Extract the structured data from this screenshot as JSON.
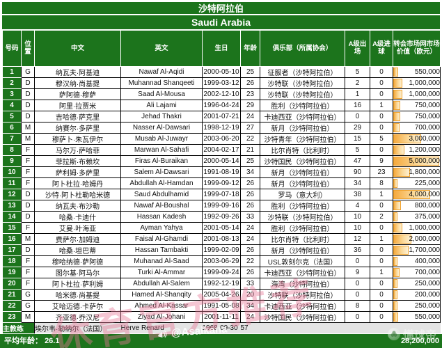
{
  "title_cn": "沙特阿拉伯",
  "title_en": "Saudi Arabia",
  "columns": [
    "号码",
    "位置",
    "中文",
    "英文",
    "生日",
    "年龄",
    "俱乐部（所属协会）",
    "A级出场",
    "A级进球",
    "转会市场网市场价值（欧元）"
  ],
  "value_axis_max": 5000000,
  "colors": {
    "green": "#1c741c",
    "bar_orange": "#f5a93d",
    "watermark_pink": "rgba(232,118,150,0.42)"
  },
  "players": [
    {
      "no": "1",
      "pos": "G",
      "cn": "纳瓦夫·阿基迪",
      "en": "Nawaf Al-Aqidi",
      "dob": "2000-05-10",
      "age": "25",
      "club": "征服者（沙特阿拉伯）",
      "caps": "5",
      "goals": "0",
      "value": "550,000",
      "value_num": 550000
    },
    {
      "no": "2",
      "pos": "D",
      "cn": "穆汉纳·尚基提",
      "en": "Muhannad Shanqeeti",
      "dob": "1999-03-12",
      "age": "26",
      "club": "沙特联（沙特阿拉伯）",
      "caps": "2",
      "goals": "0",
      "value": "1,000,000",
      "value_num": 1000000
    },
    {
      "no": "3",
      "pos": "D",
      "cn": "萨阿德·穆萨",
      "en": "Saad Al-Mousa",
      "dob": "2002-12-10",
      "age": "23",
      "club": "沙特联（沙特阿拉伯）",
      "caps": "1",
      "goals": "0",
      "value": "1,000,000",
      "value_num": 1000000
    },
    {
      "no": "4",
      "pos": "D",
      "cn": "阿里·拉贾米",
      "en": "Ali Lajami",
      "dob": "1996-04-24",
      "age": "29",
      "club": "胜利（沙特阿拉伯）",
      "caps": "16",
      "goals": "1",
      "value": "750,000",
      "value_num": 750000
    },
    {
      "no": "5",
      "pos": "D",
      "cn": "吉哈德·萨克里",
      "en": "Jehad Thakri",
      "dob": "2001-07-21",
      "age": "24",
      "club": "卡迪西亚（沙特阿拉伯）",
      "caps": "0",
      "goals": "0",
      "value": "750,000",
      "value_num": 750000
    },
    {
      "no": "6",
      "pos": "M",
      "cn": "纳赛尔·多萨里",
      "en": "Nasser Al-Dawsari",
      "dob": "1998-12-19",
      "age": "27",
      "club": "新月（沙特阿拉伯）",
      "caps": "29",
      "goals": "0",
      "value": "700,000",
      "value_num": 700000
    },
    {
      "no": "7",
      "pos": "M",
      "cn": "穆萨卜·朱瓦伊尔",
      "en": "Musab Al-Juwayr",
      "dob": "2003-06-20",
      "age": "22",
      "club": "沙特青年（沙特阿拉伯）",
      "caps": "15",
      "goals": "5",
      "value": "3,000,000",
      "value_num": 3000000
    },
    {
      "no": "8",
      "pos": "F",
      "cn": "马尔万·萨哈菲",
      "en": "Marwan Al-Sahafi",
      "dob": "2004-02-17",
      "age": "21",
      "club": "比尔肖特（比利时）",
      "caps": "5",
      "goals": "0",
      "value": "1,200,000",
      "value_num": 1200000
    },
    {
      "no": "9",
      "pos": "F",
      "cn": "菲拉斯·布赖坎",
      "en": "Firas Al-Buraikan",
      "dob": "2000-05-14",
      "age": "25",
      "club": "沙特国民（沙特阿拉伯）",
      "caps": "47",
      "goals": "9",
      "value": "5,000,000",
      "value_num": 5000000
    },
    {
      "no": "10",
      "pos": "F",
      "cn": "萨利姆·多萨里",
      "en": "Salem Al-Dawsari",
      "dob": "1991-08-19",
      "age": "34",
      "club": "新月（沙特阿拉伯）",
      "caps": "90",
      "goals": "23",
      "value": "1,800,000",
      "value_num": 1800000
    },
    {
      "no": "11",
      "pos": "F",
      "cn": "阿卜杜拉·哈姆丹",
      "en": "Abdullah Al-Hamdan",
      "dob": "1999-09-12",
      "age": "26",
      "club": "新月（沙特阿拉伯）",
      "caps": "34",
      "goals": "8",
      "value": "225,000",
      "value_num": 225000
    },
    {
      "no": "12",
      "pos": "D",
      "cn": "沙特·阿卜杜勒哈米德",
      "en": "Saud Abdulhamid",
      "dob": "1999-07-18",
      "age": "26",
      "club": "罗马（意大利）",
      "caps": "38",
      "goals": "1",
      "value": "4,000,000",
      "value_num": 4000000
    },
    {
      "no": "13",
      "pos": "D",
      "cn": "纳瓦夫·布沙勒",
      "en": "Nawaf Al-Boushal",
      "dob": "1999-09-16",
      "age": "26",
      "club": "胜利（沙特阿拉伯）",
      "caps": "4",
      "goals": "0",
      "value": "800,000",
      "value_num": 800000
    },
    {
      "no": "14",
      "pos": "D",
      "cn": "哈桑·卡迪什",
      "en": "Hassan Kadesh",
      "dob": "1992-09-26",
      "age": "33",
      "club": "沙特联（沙特阿拉伯）",
      "caps": "10",
      "goals": "2",
      "value": "375,000",
      "value_num": 375000
    },
    {
      "no": "15",
      "pos": "F",
      "cn": "艾曼·叶海亚",
      "en": "Ayman Yahya",
      "dob": "2001-05-14",
      "age": "24",
      "club": "胜利（沙特阿拉伯）",
      "caps": "10",
      "goals": "0",
      "value": "1,000,000",
      "value_num": 1000000
    },
    {
      "no": "16",
      "pos": "M",
      "cn": "费萨尔·加姆迪",
      "en": "Faisal Al-Ghamdi",
      "dob": "2001-08-13",
      "age": "24",
      "club": "比尔肖特（比利时）",
      "caps": "12",
      "goals": "1",
      "value": "2,000,000",
      "value_num": 2000000
    },
    {
      "no": "17",
      "pos": "D",
      "cn": "哈桑·坦巴蒂",
      "en": "Hassan Tambakti",
      "dob": "1999-02-09",
      "age": "26",
      "club": "新月（沙特阿拉伯）",
      "caps": "36",
      "goals": "0",
      "value": "1,700,000",
      "value_num": 1700000
    },
    {
      "no": "18",
      "pos": "F",
      "cn": "穆哈纳德·萨阿德",
      "en": "Muhanad Al-Saad",
      "dob": "2003-06-29",
      "age": "22",
      "club": "USL敦刻尔克（法国）",
      "caps": "0",
      "goals": "0",
      "value": "400,000",
      "value_num": 400000
    },
    {
      "no": "19",
      "pos": "F",
      "cn": "图尔基·阿马尔",
      "en": "Turki Al-Ammar",
      "dob": "1999-09-24",
      "age": "26",
      "club": "卡迪西亚（沙特阿拉伯）",
      "caps": "9",
      "goals": "1",
      "value": "700,000",
      "value_num": 700000
    },
    {
      "no": "20",
      "pos": "F",
      "cn": "阿卜杜拉·萨利姆",
      "en": "Abdullah Al-Salem",
      "dob": "1992-12-19",
      "age": "33",
      "club": "海湾（沙特阿拉伯）",
      "caps": "0",
      "goals": "0",
      "value": "250,000",
      "value_num": 250000
    },
    {
      "no": "21",
      "pos": "G",
      "cn": "哈米德·尚基提",
      "en": "Hamed Al-Shanqity",
      "dob": "2005-04-26",
      "age": "20",
      "club": "沙特联（沙特阿拉伯）",
      "caps": "0",
      "goals": "0",
      "value": "200,000",
      "value_num": 200000
    },
    {
      "no": "22",
      "pos": "G",
      "cn": "艾哈迈德·卡萨尔",
      "en": "Ahmed Al-Kassar",
      "dob": "1991-05-08",
      "age": "34",
      "club": "卡迪西亚（沙特阿拉伯）",
      "caps": "8",
      "goals": "0",
      "value": "250,000",
      "value_num": 250000
    },
    {
      "no": "23",
      "pos": "M",
      "cn": "齐亚德·乔汉尼",
      "en": "Ziyad Al-Johani",
      "dob": "2001-11-11",
      "age": "24",
      "club": "沙特国民（沙特阿拉伯）",
      "caps": "0",
      "goals": "0",
      "value": "550,000",
      "value_num": 550000
    }
  ],
  "coach": {
    "label": "主教练",
    "cn": "埃尔韦·勒纳尔（法国）",
    "en": "Herve Renard",
    "dob": "1968-09-30",
    "age": "57"
  },
  "footer": {
    "avg_label": "平均年龄：",
    "avg_value": "26.1",
    "total_value": "28,200,000"
  },
  "watermarks": {
    "diagonal_text": "休育官方推荐",
    "handle": "@Asaikana",
    "logo_text": "懂球帝"
  }
}
